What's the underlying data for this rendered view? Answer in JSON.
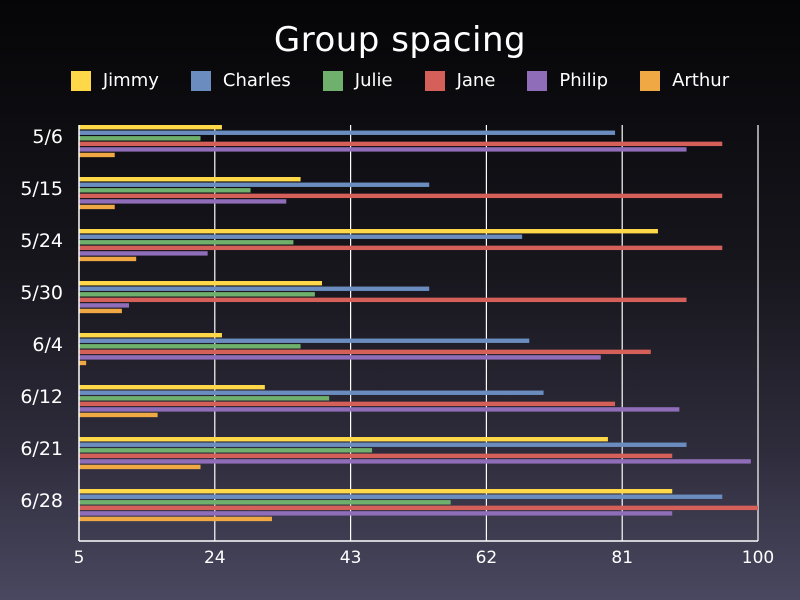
{
  "chart_data": {
    "type": "bar",
    "orientation": "horizontal",
    "title": "Group spacing",
    "categories": [
      "5/6",
      "5/15",
      "5/24",
      "5/30",
      "6/4",
      "6/12",
      "6/21",
      "6/28"
    ],
    "series": [
      {
        "name": "Jimmy",
        "color": "#ffd84a",
        "values": [
          25,
          36,
          86,
          39,
          25,
          31,
          79,
          88
        ]
      },
      {
        "name": "Charles",
        "color": "#6b8cbf",
        "values": [
          80,
          54,
          67,
          54,
          68,
          70,
          90,
          95
        ]
      },
      {
        "name": "Julie",
        "color": "#6fb06c",
        "values": [
          22,
          29,
          35,
          38,
          36,
          40,
          46,
          57
        ]
      },
      {
        "name": "Jane",
        "color": "#d5605a",
        "values": [
          95,
          95,
          95,
          90,
          85,
          80,
          88,
          100
        ]
      },
      {
        "name": "Philip",
        "color": "#8f6db8",
        "values": [
          90,
          34,
          23,
          12,
          78,
          89,
          99,
          88
        ]
      },
      {
        "name": "Arthur",
        "color": "#f0a844",
        "values": [
          10,
          10,
          13,
          11,
          6,
          16,
          22,
          32
        ]
      }
    ],
    "xticks": [
      "5",
      "24",
      "43",
      "62",
      "81",
      "100"
    ],
    "xlim": [
      5,
      100
    ],
    "grid": "vertical",
    "legend_position": "top"
  }
}
